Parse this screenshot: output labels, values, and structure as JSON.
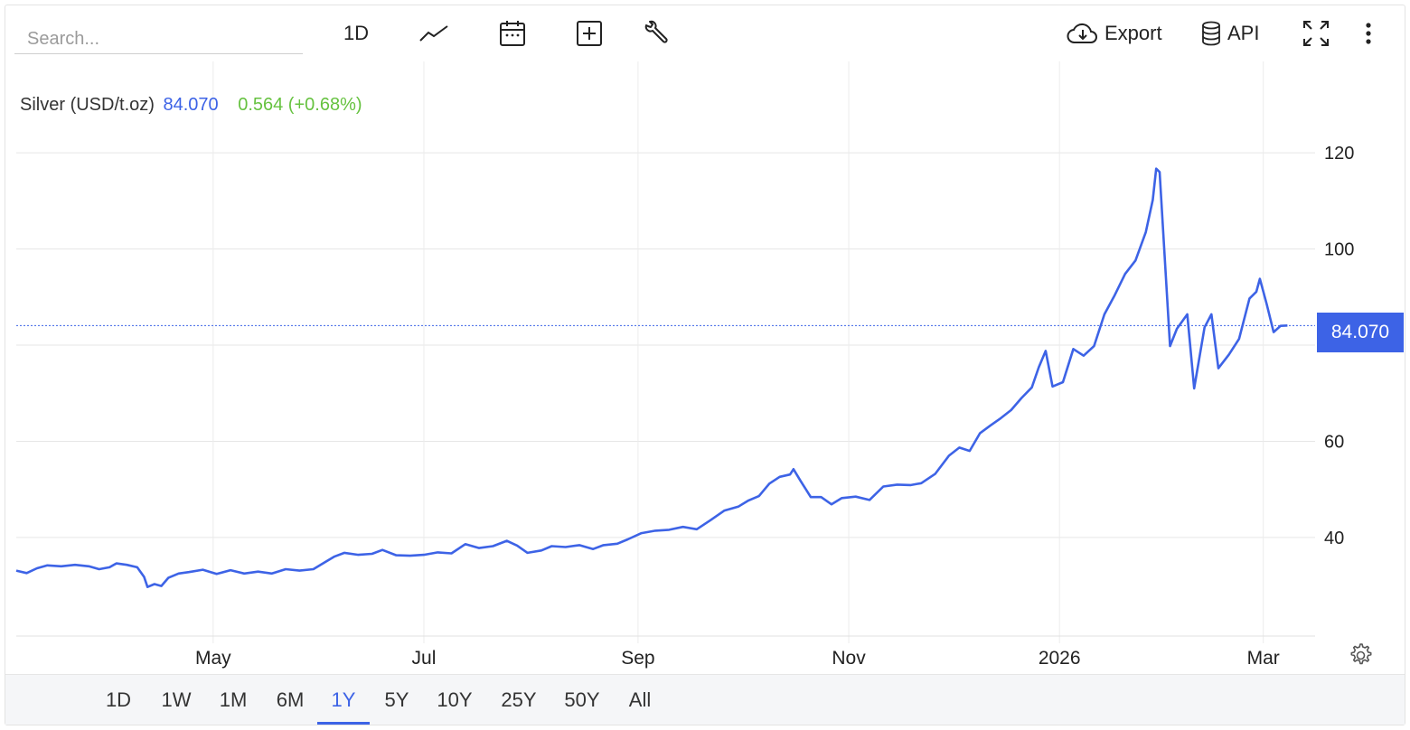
{
  "toolbar": {
    "search_placeholder": "Search...",
    "interval_label": "1D",
    "export_label": "Export",
    "api_label": "API"
  },
  "legend": {
    "name": "Silver (USD/t.oz)",
    "price": "84.070",
    "change": "0.564 (+0.68%)"
  },
  "price_tag": "84.070",
  "ranges": [
    "1D",
    "1W",
    "1M",
    "6M",
    "1Y",
    "5Y",
    "10Y",
    "25Y",
    "50Y",
    "All"
  ],
  "active_range": "1Y",
  "colors": {
    "line": "#3d63e6",
    "positive": "#66c240",
    "accent": "#3d63e6"
  },
  "chart_data": {
    "type": "line",
    "title": "",
    "xlabel": "",
    "ylabel": "",
    "x_ticks": [
      {
        "label": "May",
        "date": "2025-05-01"
      },
      {
        "label": "Jul",
        "date": "2025-07-01"
      },
      {
        "label": "Sep",
        "date": "2025-09-01"
      },
      {
        "label": "Nov",
        "date": "2025-11-01"
      },
      {
        "label": "2026",
        "date": "2026-01-01"
      },
      {
        "label": "Mar",
        "date": "2026-03-01"
      }
    ],
    "y_ticks": [
      40,
      60,
      80,
      100,
      120
    ],
    "ylim": [
      19.5,
      139
    ],
    "xlim": [
      "2025-03-05",
      "2026-03-16"
    ],
    "last_value": 84.07,
    "grid": true,
    "series": [
      {
        "values": [
          [
            "2025-03-05",
            33.1
          ],
          [
            "2025-03-08",
            32.6
          ],
          [
            "2025-03-11",
            33.6
          ],
          [
            "2025-03-14",
            34.2
          ],
          [
            "2025-03-18",
            34.0
          ],
          [
            "2025-03-22",
            34.3
          ],
          [
            "2025-03-26",
            34.0
          ],
          [
            "2025-03-29",
            33.4
          ],
          [
            "2025-04-01",
            33.8
          ],
          [
            "2025-04-03",
            34.6
          ],
          [
            "2025-04-06",
            34.3
          ],
          [
            "2025-04-09",
            33.8
          ],
          [
            "2025-04-11",
            31.8
          ],
          [
            "2025-04-12",
            29.7
          ],
          [
            "2025-04-14",
            30.3
          ],
          [
            "2025-04-16",
            29.9
          ],
          [
            "2025-04-18",
            31.6
          ],
          [
            "2025-04-21",
            32.5
          ],
          [
            "2025-04-24",
            32.8
          ],
          [
            "2025-04-28",
            33.3
          ],
          [
            "2025-05-02",
            32.4
          ],
          [
            "2025-05-06",
            33.2
          ],
          [
            "2025-05-10",
            32.5
          ],
          [
            "2025-05-14",
            32.9
          ],
          [
            "2025-05-18",
            32.5
          ],
          [
            "2025-05-22",
            33.4
          ],
          [
            "2025-05-26",
            33.1
          ],
          [
            "2025-05-30",
            33.4
          ],
          [
            "2025-06-02",
            34.7
          ],
          [
            "2025-06-05",
            36.0
          ],
          [
            "2025-06-08",
            36.8
          ],
          [
            "2025-06-12",
            36.4
          ],
          [
            "2025-06-16",
            36.6
          ],
          [
            "2025-06-19",
            37.4
          ],
          [
            "2025-06-23",
            36.3
          ],
          [
            "2025-06-27",
            36.2
          ],
          [
            "2025-07-01",
            36.4
          ],
          [
            "2025-07-05",
            36.9
          ],
          [
            "2025-07-09",
            36.7
          ],
          [
            "2025-07-13",
            38.6
          ],
          [
            "2025-07-17",
            37.8
          ],
          [
            "2025-07-21",
            38.2
          ],
          [
            "2025-07-25",
            39.3
          ],
          [
            "2025-07-28",
            38.3
          ],
          [
            "2025-07-31",
            36.8
          ],
          [
            "2025-08-04",
            37.3
          ],
          [
            "2025-08-07",
            38.2
          ],
          [
            "2025-08-11",
            38.0
          ],
          [
            "2025-08-15",
            38.4
          ],
          [
            "2025-08-19",
            37.6
          ],
          [
            "2025-08-22",
            38.4
          ],
          [
            "2025-08-26",
            38.7
          ],
          [
            "2025-08-29",
            39.6
          ],
          [
            "2025-09-02",
            40.9
          ],
          [
            "2025-09-06",
            41.4
          ],
          [
            "2025-09-10",
            41.6
          ],
          [
            "2025-09-14",
            42.2
          ],
          [
            "2025-09-18",
            41.7
          ],
          [
            "2025-09-22",
            43.6
          ],
          [
            "2025-09-26",
            45.6
          ],
          [
            "2025-09-30",
            46.4
          ],
          [
            "2025-10-03",
            47.7
          ],
          [
            "2025-10-06",
            48.6
          ],
          [
            "2025-10-09",
            51.2
          ],
          [
            "2025-10-12",
            52.6
          ],
          [
            "2025-10-15",
            53.1
          ],
          [
            "2025-10-16",
            54.2
          ],
          [
            "2025-10-18",
            51.8
          ],
          [
            "2025-10-21",
            48.4
          ],
          [
            "2025-10-24",
            48.4
          ],
          [
            "2025-10-27",
            46.9
          ],
          [
            "2025-10-30",
            48.2
          ],
          [
            "2025-11-03",
            48.5
          ],
          [
            "2025-11-07",
            47.8
          ],
          [
            "2025-11-11",
            50.6
          ],
          [
            "2025-11-15",
            51.0
          ],
          [
            "2025-11-19",
            50.9
          ],
          [
            "2025-11-22",
            51.3
          ],
          [
            "2025-11-26",
            53.2
          ],
          [
            "2025-11-30",
            57.0
          ],
          [
            "2025-12-03",
            58.7
          ],
          [
            "2025-12-06",
            58.0
          ],
          [
            "2025-12-09",
            61.7
          ],
          [
            "2025-12-12",
            63.3
          ],
          [
            "2025-12-15",
            64.8
          ],
          [
            "2025-12-18",
            66.5
          ],
          [
            "2025-12-21",
            69.0
          ],
          [
            "2025-12-24",
            71.2
          ],
          [
            "2025-12-26",
            75.4
          ],
          [
            "2025-12-28",
            78.8
          ],
          [
            "2025-12-30",
            71.4
          ],
          [
            "2026-01-02",
            72.3
          ],
          [
            "2026-01-05",
            79.2
          ],
          [
            "2026-01-08",
            77.8
          ],
          [
            "2026-01-11",
            79.8
          ],
          [
            "2026-01-14",
            86.4
          ],
          [
            "2026-01-17",
            90.4
          ],
          [
            "2026-01-20",
            94.8
          ],
          [
            "2026-01-23",
            97.6
          ],
          [
            "2026-01-26",
            103.5
          ],
          [
            "2026-01-28",
            110.2
          ],
          [
            "2026-01-29",
            116.7
          ],
          [
            "2026-01-30",
            116.0
          ],
          [
            "2026-01-31",
            104.0
          ],
          [
            "2026-02-02",
            79.8
          ],
          [
            "2026-02-04",
            83.4
          ],
          [
            "2026-02-07",
            86.4
          ],
          [
            "2026-02-09",
            71.0
          ],
          [
            "2026-02-12",
            83.7
          ],
          [
            "2026-02-14",
            86.4
          ],
          [
            "2026-02-16",
            75.2
          ],
          [
            "2026-02-19",
            78.0
          ],
          [
            "2026-02-22",
            81.3
          ],
          [
            "2026-02-25",
            89.7
          ],
          [
            "2026-02-27",
            91.1
          ],
          [
            "2026-02-28",
            93.8
          ],
          [
            "2026-03-02",
            88.5
          ],
          [
            "2026-03-04",
            82.7
          ],
          [
            "2026-03-06",
            84.0
          ],
          [
            "2026-03-08",
            84.07
          ]
        ]
      }
    ]
  }
}
